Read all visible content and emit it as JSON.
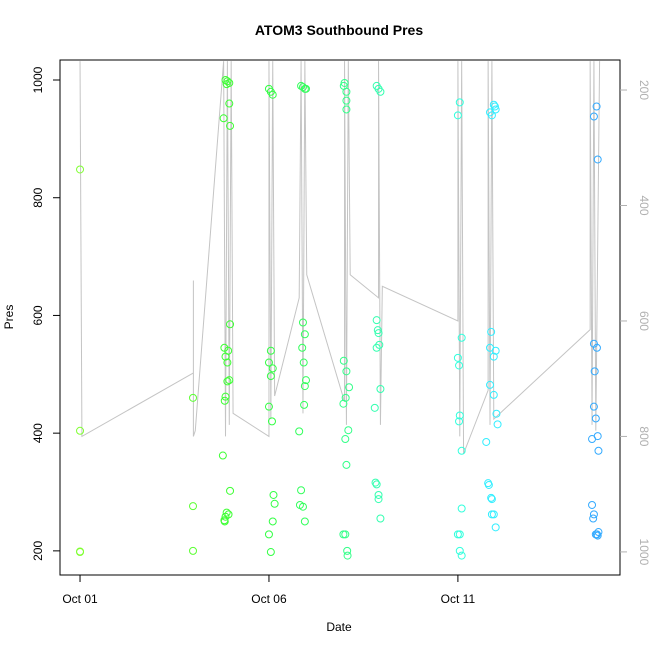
{
  "chart_data": {
    "type": "scatter",
    "title": "ATOM3 Southbound Pres",
    "x_label": "Date",
    "y_label": "Pres",
    "xlim": [
      0.47,
      15.29
    ],
    "xticks": [
      {
        "value": 1,
        "label": "Oct 01"
      },
      {
        "value": 6,
        "label": "Oct 06"
      },
      {
        "value": 11,
        "label": "Oct 11"
      }
    ],
    "ylim": [
      159,
      1034
    ],
    "yticks": [
      200,
      400,
      600,
      800,
      1000
    ],
    "y2lim": [
      1040,
      148
    ],
    "y2ticks": [
      200,
      400,
      600,
      800,
      1000
    ],
    "y2_color": "#b0b0b0",
    "series": [
      {
        "color": "#80ff33",
        "x": [
          1.0,
          1.0,
          1.0,
          1.0
        ],
        "values": [
          848,
          404,
          198,
          199
        ]
      },
      {
        "color": "#5cff33",
        "x": [
          3.99,
          3.99,
          3.99
        ],
        "values": [
          460,
          276,
          200
        ]
      },
      {
        "color": "#3dff33",
        "x": [
          4.85,
          4.9,
          4.95,
          4.88,
          4.95,
          4.8,
          4.97,
          4.97,
          4.82,
          4.92,
          4.85,
          4.9,
          4.95,
          4.9,
          4.85,
          4.83,
          4.78,
          4.97,
          4.88,
          4.93,
          4.85,
          4.82,
          4.83
        ],
        "values": [
          1000,
          998,
          995,
          993,
          960,
          935,
          922,
          585,
          545,
          540,
          530,
          520,
          490,
          488,
          462,
          455,
          362,
          302,
          265,
          262,
          258,
          252,
          250
        ]
      },
      {
        "color": "#33ff44",
        "x": [
          6.0,
          6.05,
          6.1,
          6.05,
          6.0,
          6.1,
          6.05,
          6.0,
          6.08,
          6.12,
          6.15,
          6.1,
          6.0,
          6.05
        ],
        "values": [
          985,
          980,
          975,
          540,
          520,
          510,
          497,
          445,
          420,
          295,
          280,
          250,
          228,
          198
        ]
      },
      {
        "color": "#33ff5c",
        "x": [
          6.85,
          6.9,
          6.95,
          6.98,
          6.9,
          6.95,
          6.88,
          6.92,
          6.98,
          6.95,
          6.93,
          6.8,
          6.85,
          6.82,
          6.9,
          6.95
        ],
        "values": [
          990,
          988,
          985,
          985,
          588,
          568,
          545,
          520,
          490,
          480,
          448,
          403,
          303,
          278,
          275,
          250
        ]
      },
      {
        "color": "#33ff88",
        "x": [
          8.0,
          7.98,
          8.05,
          8.05,
          8.05,
          7.98,
          8.05,
          8.12,
          8.03,
          7.97,
          8.1,
          8.02,
          8.05,
          7.97,
          8.02,
          8.07,
          8.08
        ],
        "values": [
          995,
          990,
          980,
          965,
          950,
          523,
          505,
          478,
          460,
          450,
          405,
          390,
          346,
          228,
          228,
          200,
          192
        ]
      },
      {
        "color": "#33ffb0",
        "x": [
          8.85,
          8.9,
          8.95,
          8.85,
          8.88,
          8.9,
          8.92,
          8.85,
          8.95,
          8.8,
          8.82,
          8.85,
          8.9,
          8.9,
          8.95
        ],
        "values": [
          990,
          985,
          980,
          592,
          575,
          570,
          550,
          545,
          475,
          443,
          316,
          313,
          295,
          288,
          255
        ]
      },
      {
        "color": "#33ffdd",
        "x": [
          11.05,
          11.0,
          11.1,
          11.0,
          11.03,
          11.05,
          11.03,
          11.1,
          11.1,
          11.0,
          11.05,
          11.05,
          11.1
        ],
        "values": [
          962,
          940,
          562,
          528,
          515,
          430,
          420,
          370,
          272,
          228,
          228,
          200,
          192
        ]
      },
      {
        "color": "#33eeff",
        "x": [
          11.95,
          11.98,
          12.0,
          11.85,
          11.9,
          11.88,
          11.85,
          12.0,
          11.95,
          11.85,
          11.95,
          12.02,
          12.05,
          11.75,
          11.8,
          11.82,
          11.88,
          11.9,
          11.9,
          11.95,
          12.0
        ],
        "values": [
          958,
          955,
          950,
          945,
          940,
          572,
          545,
          540,
          530,
          482,
          465,
          433,
          415,
          385,
          315,
          312,
          290,
          288,
          262,
          262,
          240
        ]
      },
      {
        "color": "#33aaff",
        "x": [
          14.67,
          14.6,
          14.7,
          14.6,
          14.68,
          14.62,
          14.6,
          14.65,
          14.7,
          14.55,
          14.72,
          14.55,
          14.6,
          14.58,
          14.72,
          14.65,
          14.68,
          14.7
        ],
        "values": [
          955,
          938,
          865,
          552,
          545,
          505,
          445,
          425,
          395,
          390,
          370,
          278,
          262,
          255,
          232,
          228,
          228,
          226
        ]
      },
      {
        "type": "line",
        "axis": "y2",
        "color": "#c4c4c4",
        "x": [
          1.0,
          1.05,
          4.0,
          4.0,
          4.0,
          4.05,
          4.8,
          4.85,
          4.9,
          4.95,
          5.0,
          5.05,
          6.0,
          6.0,
          6.05,
          6.1,
          6.15,
          6.8,
          6.85,
          6.9,
          6.95,
          7.0,
          8.0,
          8.0,
          8.05,
          8.1,
          8.15,
          8.9,
          8.9,
          8.95,
          9.0,
          11.0,
          11.0,
          11.05,
          11.1,
          11.15,
          11.8,
          11.8,
          11.85,
          11.9,
          11.95,
          14.5,
          14.5,
          14.55,
          14.6,
          14.65,
          14.75
        ],
        "values": [
          150,
          800,
          690,
          530,
          800,
          790,
          150,
          800,
          150,
          780,
          150,
          760,
          800,
          150,
          770,
          150,
          730,
          560,
          150,
          760,
          150,
          520,
          740,
          150,
          780,
          150,
          520,
          560,
          150,
          780,
          540,
          600,
          150,
          800,
          150,
          830,
          720,
          150,
          780,
          150,
          770,
          615,
          150,
          780,
          150,
          790,
          150
        ]
      }
    ]
  }
}
